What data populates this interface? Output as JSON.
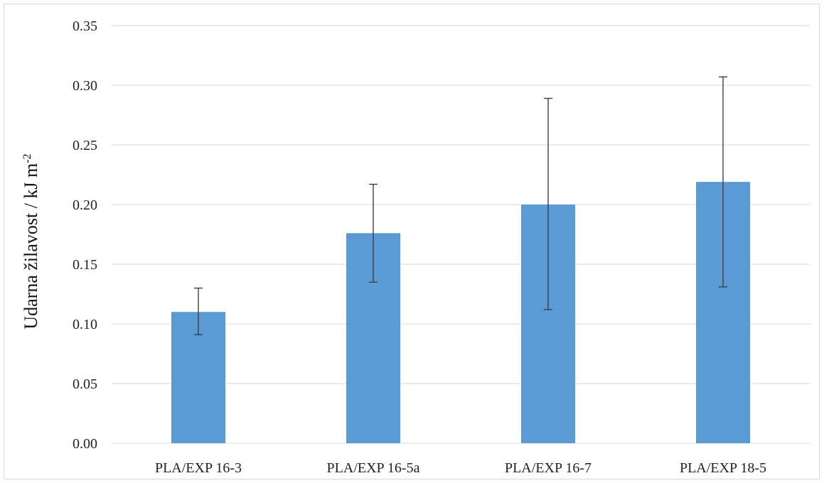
{
  "chart_data": {
    "type": "bar",
    "title": "",
    "xlabel": "",
    "ylabel": "Udarna žilavost / kJ m",
    "ylabel_superscript": "-2",
    "categories": [
      "PLA/EXP 16-3",
      "PLA/EXP 16-5a",
      "PLA/EXP 16-7",
      "PLA/EXP 18-5"
    ],
    "values": [
      0.11,
      0.176,
      0.2,
      0.219
    ],
    "error_low": [
      0.091,
      0.135,
      0.112,
      0.131
    ],
    "error_high": [
      0.13,
      0.217,
      0.289,
      0.307
    ],
    "ylim": [
      0,
      0.35
    ],
    "yticks": [
      "0.00",
      "0.05",
      "0.10",
      "0.15",
      "0.20",
      "0.25",
      "0.30",
      "0.35"
    ],
    "grid": true,
    "legend": "none",
    "colors": {
      "bar": "#5b9bd5",
      "grid": "#d9d9d9",
      "error_bar": "#404040"
    }
  }
}
